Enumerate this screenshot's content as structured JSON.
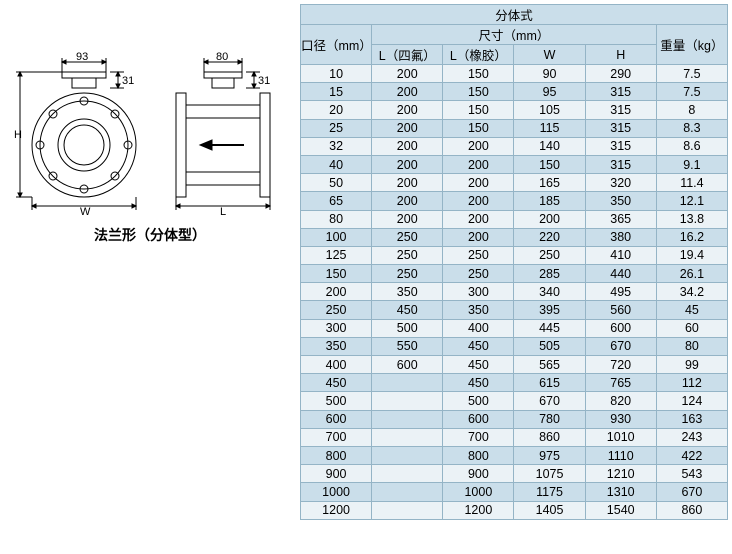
{
  "diagram": {
    "caption": "法兰形（分体型）",
    "front": {
      "top_w": "93",
      "top_h": "31",
      "H": "H",
      "W": "W"
    },
    "side": {
      "top_w": "80",
      "top_h": "31",
      "L": "L"
    }
  },
  "table": {
    "title": "分体式",
    "headers": {
      "diameter": "口径（mm）",
      "size_group": "尺寸（mm）",
      "L1": "L（四氟）",
      "L2": "L（橡胶）",
      "W": "W",
      "H": "H",
      "weight": "重量（kg）"
    },
    "rows": [
      [
        "10",
        "200",
        "150",
        "90",
        "290",
        "7.5"
      ],
      [
        "15",
        "200",
        "150",
        "95",
        "315",
        "7.5"
      ],
      [
        "20",
        "200",
        "150",
        "105",
        "315",
        "8"
      ],
      [
        "25",
        "200",
        "150",
        "115",
        "315",
        "8.3"
      ],
      [
        "32",
        "200",
        "200",
        "140",
        "315",
        "8.6"
      ],
      [
        "40",
        "200",
        "200",
        "150",
        "315",
        "9.1"
      ],
      [
        "50",
        "200",
        "200",
        "165",
        "320",
        "11.4"
      ],
      [
        "65",
        "200",
        "200",
        "185",
        "350",
        "12.1"
      ],
      [
        "80",
        "200",
        "200",
        "200",
        "365",
        "13.8"
      ],
      [
        "100",
        "250",
        "200",
        "220",
        "380",
        "16.2"
      ],
      [
        "125",
        "250",
        "250",
        "250",
        "410",
        "19.4"
      ],
      [
        "150",
        "250",
        "250",
        "285",
        "440",
        "26.1"
      ],
      [
        "200",
        "350",
        "300",
        "340",
        "495",
        "34.2"
      ],
      [
        "250",
        "450",
        "350",
        "395",
        "560",
        "45"
      ],
      [
        "300",
        "500",
        "400",
        "445",
        "600",
        "60"
      ],
      [
        "350",
        "550",
        "450",
        "505",
        "670",
        "80"
      ],
      [
        "400",
        "600",
        "450",
        "565",
        "720",
        "99"
      ],
      [
        "450",
        "",
        "450",
        "615",
        "765",
        "112"
      ],
      [
        "500",
        "",
        "500",
        "670",
        "820",
        "124"
      ],
      [
        "600",
        "",
        "600",
        "780",
        "930",
        "163"
      ],
      [
        "700",
        "",
        "700",
        "860",
        "1010",
        "243"
      ],
      [
        "800",
        "",
        "800",
        "975",
        "1110",
        "422"
      ],
      [
        "900",
        "",
        "900",
        "1075",
        "1210",
        "543"
      ],
      [
        "1000",
        "",
        "1000",
        "1175",
        "1310",
        "670"
      ],
      [
        "1200",
        "",
        "1200",
        "1405",
        "1540",
        "860"
      ]
    ],
    "colors": {
      "border": "#94b4c6",
      "header_bg": "#cadeea",
      "row_odd": "#ebf2f6",
      "row_even": "#cadeea"
    }
  }
}
